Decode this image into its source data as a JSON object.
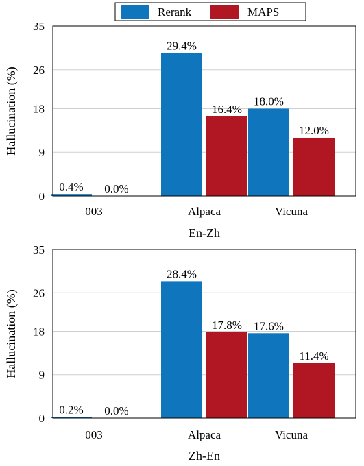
{
  "legend": [
    {
      "name": "Rerank",
      "color": "#0f76bd"
    },
    {
      "name": "MAPS",
      "color": "#b01722"
    }
  ],
  "colors": {
    "rerank": "#0f76bd",
    "maps": "#b01722",
    "grid": "#cfcfcf"
  },
  "chart_data": [
    {
      "type": "bar",
      "xlabel": "En-Zh",
      "ylabel": "Hallucination (%)",
      "ylim": [
        0,
        35
      ],
      "yticks": [
        0,
        9,
        18,
        26,
        35
      ],
      "grid": true,
      "legend_position": "top-center",
      "categories": [
        "003",
        "Alpaca",
        "Vicuna"
      ],
      "series": [
        {
          "name": "Rerank",
          "values": [
            0.4,
            29.4,
            18.0
          ],
          "labels": [
            "0.4%",
            "29.4%",
            "18.0%"
          ]
        },
        {
          "name": "MAPS",
          "values": [
            0.0,
            16.4,
            12.0
          ],
          "labels": [
            "0.0%",
            "16.4%",
            "12.0%"
          ]
        }
      ]
    },
    {
      "type": "bar",
      "xlabel": "Zh-En",
      "ylabel": "Hallucination (%)",
      "ylim": [
        0,
        35
      ],
      "yticks": [
        0,
        9,
        18,
        26,
        35
      ],
      "grid": true,
      "categories": [
        "003",
        "Alpaca",
        "Vicuna"
      ],
      "series": [
        {
          "name": "Rerank",
          "values": [
            0.2,
            28.4,
            17.6
          ],
          "labels": [
            "0.2%",
            "28.4%",
            "17.6%"
          ]
        },
        {
          "name": "MAPS",
          "values": [
            0.0,
            17.8,
            11.4
          ],
          "labels": [
            "0.0%",
            "17.8%",
            "11.4%"
          ]
        }
      ]
    }
  ]
}
